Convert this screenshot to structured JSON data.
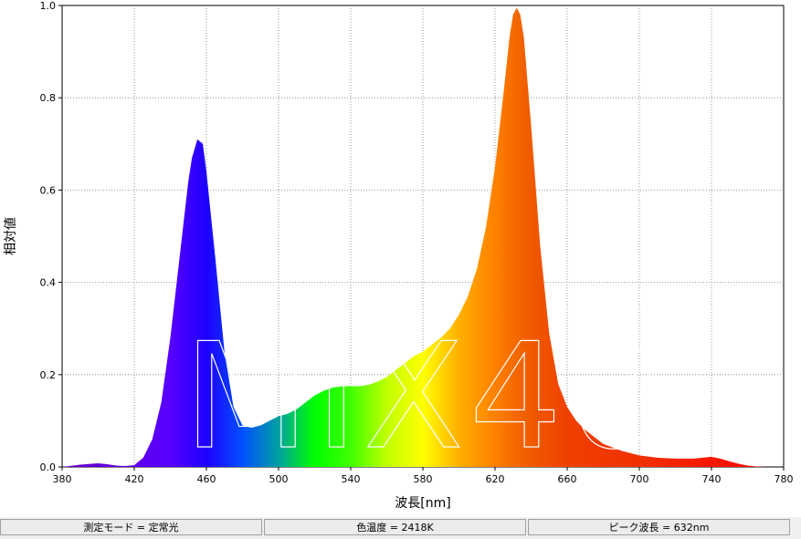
{
  "chart_data": {
    "type": "area",
    "title": "",
    "xlabel": "波長[nm]",
    "ylabel": "相対値",
    "xlim": [
      380,
      780
    ],
    "ylim": [
      0,
      1.0
    ],
    "x_ticks": [
      "380",
      "420",
      "460",
      "500",
      "540",
      "580",
      "620",
      "660",
      "700",
      "740",
      "780"
    ],
    "y_ticks": [
      "0.0",
      "0.2",
      "0.4",
      "0.6",
      "0.8",
      "1.0"
    ],
    "grid": true,
    "fill": "spectral wavelength colors",
    "watermark": "MIX40",
    "series": [
      {
        "x": [
          380,
          390,
          400,
          405,
          410,
          415,
          420,
          425,
          430,
          435,
          440,
          445,
          450,
          452,
          455,
          458,
          460,
          465,
          470,
          475,
          480,
          485,
          490,
          495,
          500,
          505,
          510,
          515,
          520,
          525,
          530,
          535,
          540,
          545,
          550,
          555,
          560,
          565,
          570,
          575,
          580,
          585,
          590,
          595,
          600,
          605,
          610,
          615,
          620,
          625,
          628,
          630,
          632,
          634,
          636,
          640,
          645,
          650,
          655,
          660,
          665,
          670,
          675,
          680,
          690,
          700,
          710,
          720,
          730,
          735,
          740,
          745,
          750,
          755,
          760,
          765,
          770,
          780
        ],
        "y": [
          0,
          0.005,
          0.008,
          0.006,
          0.003,
          0.002,
          0.004,
          0.02,
          0.06,
          0.14,
          0.28,
          0.45,
          0.62,
          0.67,
          0.71,
          0.7,
          0.64,
          0.45,
          0.25,
          0.13,
          0.09,
          0.085,
          0.09,
          0.1,
          0.11,
          0.115,
          0.125,
          0.14,
          0.155,
          0.165,
          0.172,
          0.175,
          0.175,
          0.175,
          0.178,
          0.185,
          0.195,
          0.21,
          0.225,
          0.24,
          0.25,
          0.265,
          0.28,
          0.3,
          0.33,
          0.37,
          0.43,
          0.52,
          0.65,
          0.82,
          0.93,
          0.98,
          0.995,
          0.98,
          0.93,
          0.74,
          0.48,
          0.29,
          0.18,
          0.13,
          0.1,
          0.08,
          0.065,
          0.05,
          0.035,
          0.025,
          0.02,
          0.018,
          0.018,
          0.02,
          0.022,
          0.018,
          0.012,
          0.007,
          0.003,
          0.001,
          0,
          0
        ]
      }
    ]
  },
  "status": {
    "mode": "測定モード = 定常光",
    "color_temp": "色温度 = 2418K",
    "peak": "ピーク波長 = 632nm"
  }
}
